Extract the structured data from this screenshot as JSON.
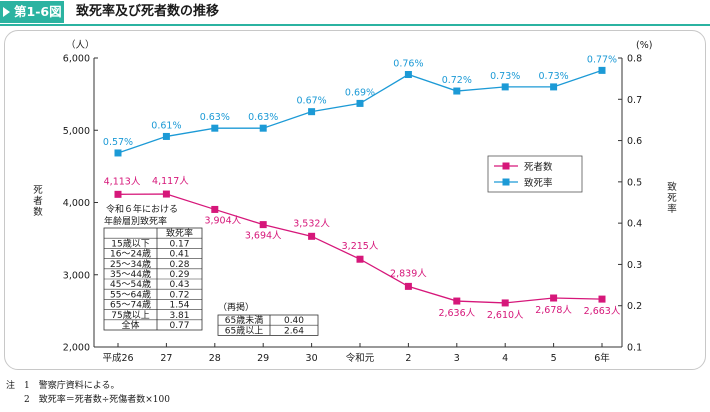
{
  "header": {
    "figure_number": "第1-6図",
    "title": "致死率及び死者数の推移"
  },
  "notes": [
    "注　1　警察庁資料による。",
    "　　2　致死率＝死者数÷死傷者数×100"
  ],
  "colors": {
    "deaths": "#d6177a",
    "rate": "#1c9ad6",
    "accent": "#2bb3a1"
  },
  "chart_data": {
    "type": "line",
    "categories": [
      "平成26",
      "27",
      "28",
      "29",
      "30",
      "令和元",
      "2",
      "3",
      "4",
      "5",
      "6年"
    ],
    "y_left": {
      "unit": "（人）",
      "label": "死者数",
      "range": [
        2000,
        6000
      ],
      "ticks": [
        "2,000",
        "3,000",
        "4,000",
        "5,000",
        "6,000"
      ]
    },
    "y_right": {
      "unit": "(%)",
      "label": "致死率",
      "range": [
        0.1,
        0.8
      ],
      "ticks": [
        "0.1",
        "0.2",
        "0.3",
        "0.4",
        "0.5",
        "0.6",
        "0.7",
        "0.8"
      ]
    },
    "series": [
      {
        "name": "死者数",
        "axis": "left",
        "values": [
          4113,
          4117,
          3904,
          3694,
          3532,
          3215,
          2839,
          2636,
          2610,
          2678,
          2663
        ],
        "labels": [
          "4,113人",
          "4,117人",
          "3,904人",
          "3,694人",
          "3,532人",
          "3,215人",
          "2,839人",
          "2,636人",
          "2,610人",
          "2,678人",
          "2,663人"
        ]
      },
      {
        "name": "致死率",
        "axis": "right",
        "values": [
          0.57,
          0.61,
          0.63,
          0.63,
          0.67,
          0.69,
          0.76,
          0.72,
          0.73,
          0.73,
          0.77
        ],
        "labels": [
          "0.57%",
          "0.61%",
          "0.63%",
          "0.63%",
          "0.67%",
          "0.69%",
          "0.76%",
          "0.72%",
          "0.73%",
          "0.73%",
          "0.77%"
        ]
      }
    ],
    "legend_placement": "right",
    "grid": false,
    "age_table": {
      "title_lines": [
        "令和６年における",
        "年齢層別致死率"
      ],
      "header": "致死率",
      "rows": [
        [
          "15歳以下",
          "0.17"
        ],
        [
          "16～24歳",
          "0.41"
        ],
        [
          "25～34歳",
          "0.28"
        ],
        [
          "35～44歳",
          "0.29"
        ],
        [
          "45～54歳",
          "0.43"
        ],
        [
          "55～64歳",
          "0.72"
        ],
        [
          "65～74歳",
          "1.54"
        ],
        [
          "75歳以上",
          "3.81"
        ],
        [
          "全体",
          "0.77"
        ]
      ]
    },
    "sub_table": {
      "title": "（再掲）",
      "rows": [
        [
          "65歳未満",
          "0.40"
        ],
        [
          "65歳以上",
          "2.64"
        ]
      ]
    }
  }
}
